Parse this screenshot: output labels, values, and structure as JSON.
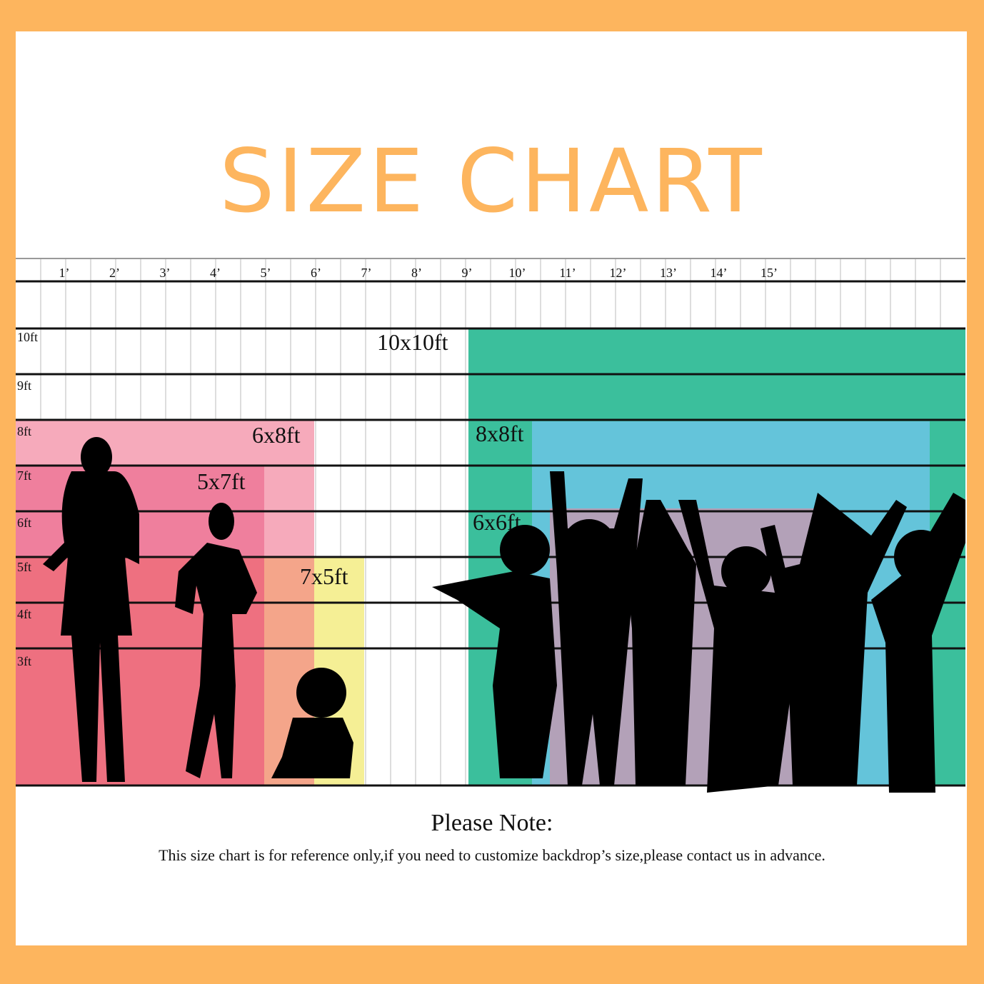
{
  "header": {
    "title": "SIZE CHART"
  },
  "ruler": {
    "width_labels": [
      "1’",
      "2’",
      "3’",
      "4’",
      "5’",
      "6’",
      "7’",
      "8’",
      "9’",
      "10’",
      "11’",
      "12’",
      "13’",
      "14’",
      "15’"
    ],
    "height_labels": [
      "10ft",
      "9ft",
      "8ft",
      "7ft",
      "6ft",
      "5ft",
      "4ft",
      "3ft"
    ]
  },
  "backdrops": [
    "10x10ft",
    "6x8ft",
    "5x7ft",
    "7x5ft",
    "8x8ft",
    "6x6ft"
  ],
  "note": {
    "title": "Please Note:",
    "text": "This size chart is for reference only,if you need to customize backdrop’s size,please contact us in advance."
  }
}
